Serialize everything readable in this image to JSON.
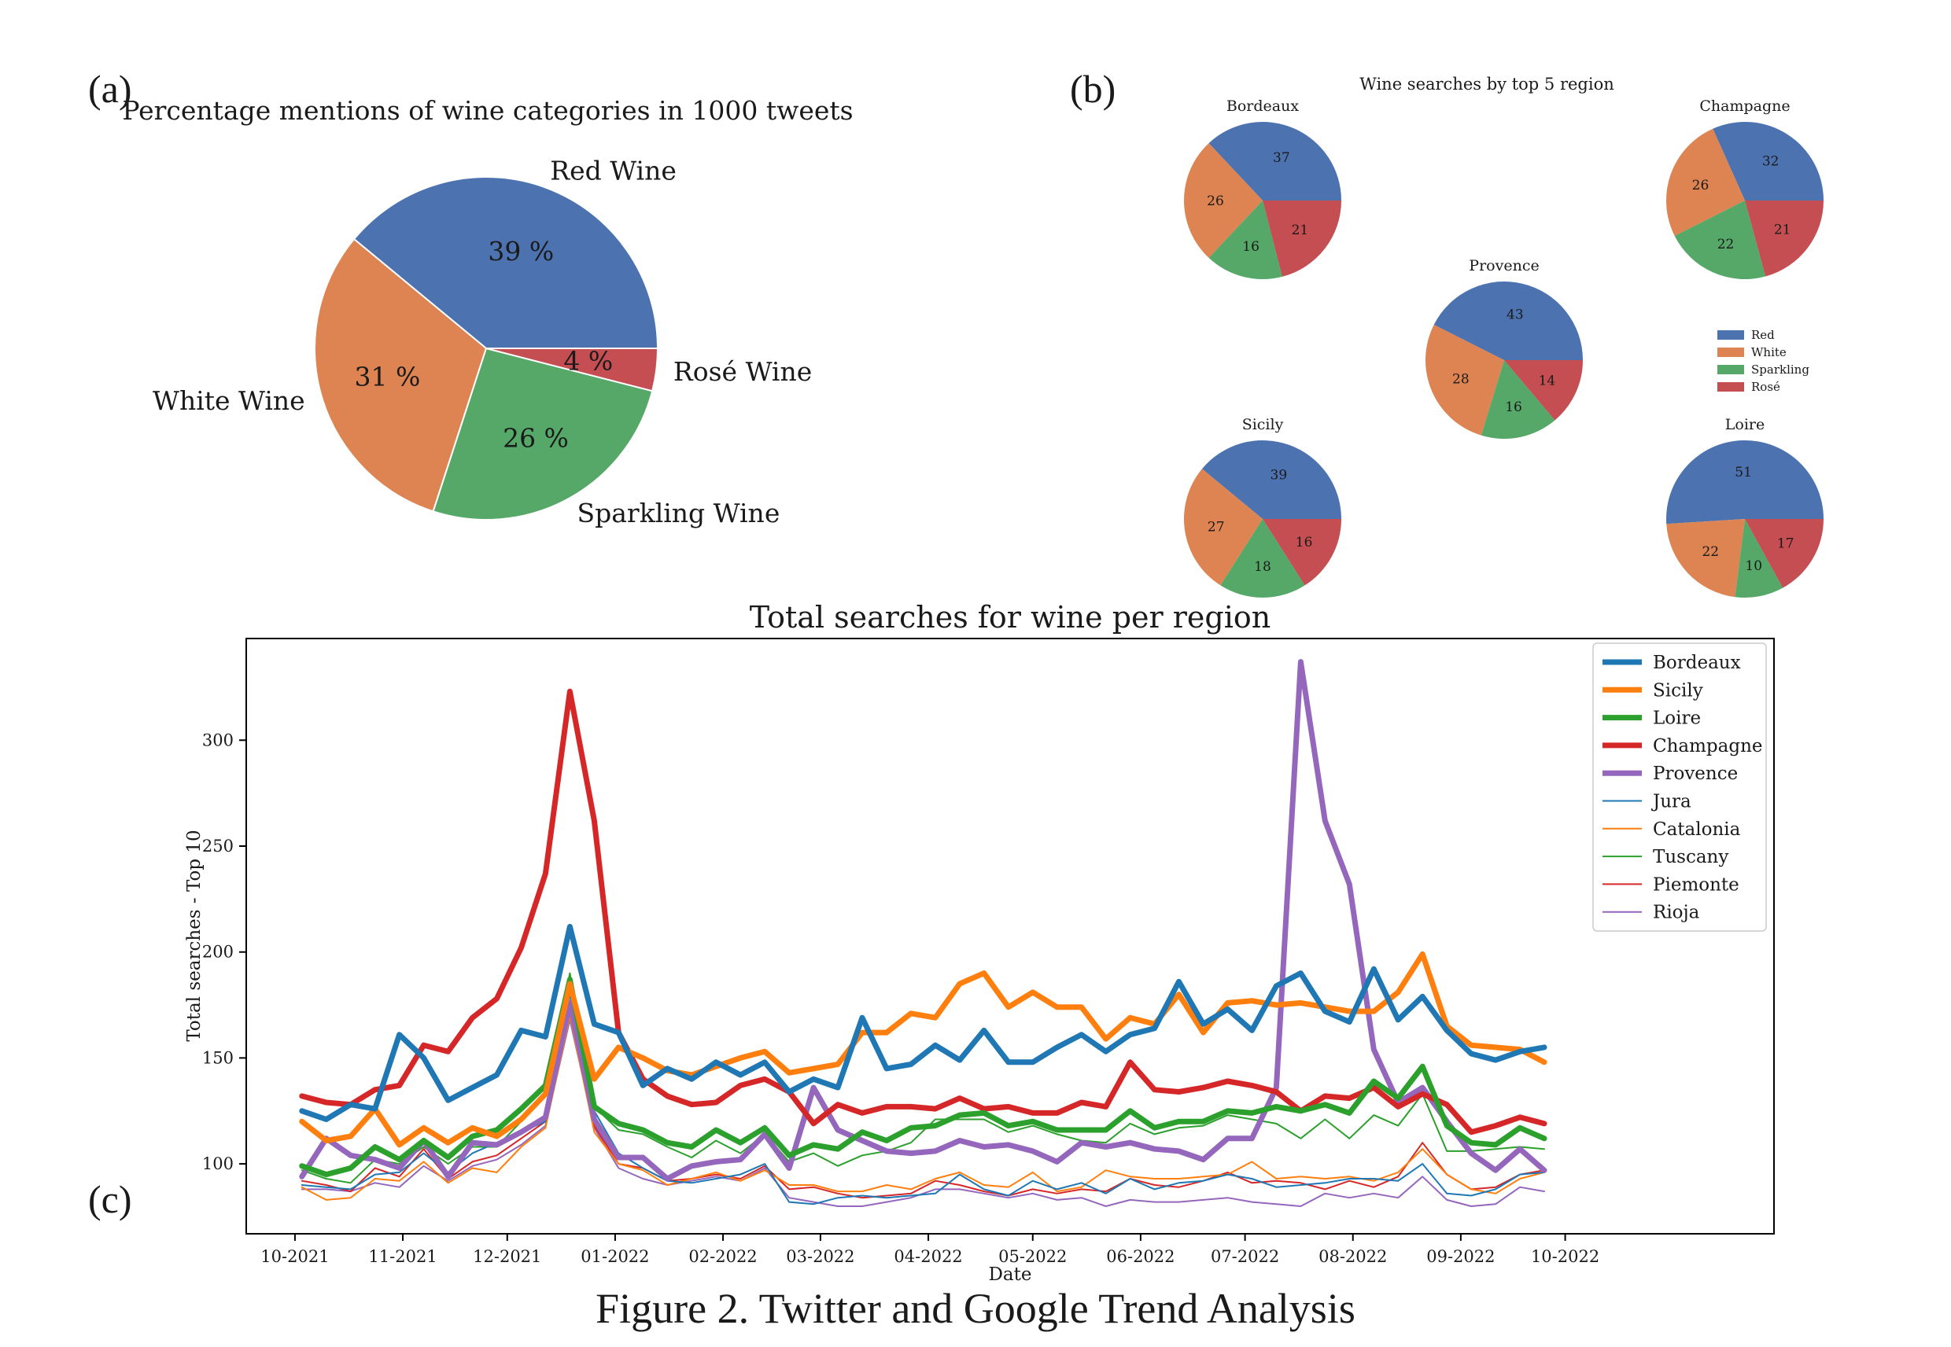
{
  "figure": {
    "caption": "Figure 2. Twitter and Google Trend Analysis",
    "panel_labels": {
      "a": "(a)",
      "b": "(b)",
      "c": "(c)"
    }
  },
  "chart_data": [
    {
      "id": "a",
      "type": "pie",
      "title": "Percentage mentions of wine categories in 1000 tweets",
      "slices": [
        {
          "label": "Red Wine",
          "value": 39,
          "pct_label": "39 %",
          "color": "#4c72b0"
        },
        {
          "label": "White Wine",
          "value": 31,
          "pct_label": "31 %",
          "color": "#dd8452"
        },
        {
          "label": "Sparkling Wine",
          "value": 26,
          "pct_label": "26 %",
          "color": "#55a868"
        },
        {
          "label": "Rosé Wine",
          "value": 4,
          "pct_label": "4 %",
          "color": "#c44e52"
        }
      ]
    },
    {
      "id": "b",
      "type": "pie",
      "title": "Wine searches by top 5 region",
      "legend": {
        "placement": "right",
        "entries": [
          {
            "label": "Red",
            "color": "#4c72b0"
          },
          {
            "label": "White",
            "color": "#dd8452"
          },
          {
            "label": "Sparkling",
            "color": "#55a868"
          },
          {
            "label": "Rosé",
            "color": "#c44e52"
          }
        ]
      },
      "pies": [
        {
          "title": "Bordeaux",
          "values": [
            37,
            26,
            16,
            21
          ]
        },
        {
          "title": "Champagne",
          "values": [
            32,
            26,
            22,
            21
          ]
        },
        {
          "title": "Provence",
          "values": [
            43,
            28,
            16,
            14
          ]
        },
        {
          "title": "Sicily",
          "values": [
            39,
            27,
            18,
            16
          ]
        },
        {
          "title": "Loire",
          "values": [
            51,
            22,
            10,
            17
          ]
        }
      ]
    },
    {
      "id": "c",
      "type": "line",
      "title": "Total searches for wine per region",
      "xlabel": "Date",
      "ylabel": "Total searches - Top 10",
      "x_start": "2021-10-03",
      "x_step_days": 7,
      "xlim": [
        "2021-09-17",
        "2022-11-30"
      ],
      "ylim": [
        67,
        348
      ],
      "xticks": [
        {
          "date": "2021-10-01",
          "label": "10-2021"
        },
        {
          "date": "2021-11-01",
          "label": "11-2021"
        },
        {
          "date": "2021-12-01",
          "label": "12-2021"
        },
        {
          "date": "2022-01-01",
          "label": "01-2022"
        },
        {
          "date": "2022-02-01",
          "label": "02-2022"
        },
        {
          "date": "2022-03-01",
          "label": "03-2022"
        },
        {
          "date": "2022-04-01",
          "label": "04-2022"
        },
        {
          "date": "2022-05-01",
          "label": "05-2022"
        },
        {
          "date": "2022-06-01",
          "label": "06-2022"
        },
        {
          "date": "2022-07-01",
          "label": "07-2022"
        },
        {
          "date": "2022-08-01",
          "label": "08-2022"
        },
        {
          "date": "2022-09-01",
          "label": "09-2022"
        },
        {
          "date": "2022-10-01",
          "label": "10-2022"
        }
      ],
      "yticks": [
        100,
        150,
        200,
        250,
        300
      ],
      "grid": false,
      "legend_placement": "top-right",
      "series": [
        {
          "name": "Bordeaux",
          "color": "#1f77b4",
          "width": 7,
          "values": [
            125,
            121,
            128,
            126,
            161,
            150,
            130,
            136,
            142,
            163,
            160,
            212,
            166,
            162,
            137,
            145,
            140,
            148,
            142,
            148,
            134,
            140,
            136,
            169,
            145,
            147,
            156,
            149,
            163,
            148,
            148,
            155,
            161,
            153,
            161,
            164,
            186,
            166,
            173,
            163,
            184,
            190,
            172,
            167,
            192,
            168,
            179,
            163,
            152,
            149,
            153,
            155
          ]
        },
        {
          "name": "Sicily",
          "color": "#ff7f0e",
          "width": 7,
          "values": [
            120,
            111,
            113,
            126,
            109,
            117,
            110,
            117,
            113,
            121,
            133,
            185,
            140,
            155,
            150,
            144,
            142,
            146,
            150,
            153,
            143,
            145,
            147,
            162,
            162,
            171,
            169,
            185,
            190,
            174,
            181,
            174,
            174,
            159,
            169,
            166,
            180,
            162,
            176,
            177,
            175,
            176,
            174,
            172,
            172,
            181,
            199,
            165,
            156,
            155,
            154,
            148
          ]
        },
        {
          "name": "Loire",
          "color": "#2ca02c",
          "width": 7,
          "values": [
            99,
            95,
            98,
            108,
            102,
            111,
            103,
            113,
            116,
            126,
            137,
            187,
            127,
            119,
            116,
            110,
            108,
            116,
            110,
            117,
            104,
            109,
            107,
            115,
            111,
            117,
            118,
            123,
            124,
            118,
            120,
            116,
            116,
            116,
            125,
            117,
            120,
            120,
            125,
            124,
            127,
            125,
            128,
            124,
            139,
            131,
            146,
            118,
            110,
            109,
            117,
            112
          ]
        },
        {
          "name": "Champagne",
          "color": "#d62728",
          "width": 7,
          "values": [
            132,
            129,
            128,
            135,
            137,
            156,
            153,
            169,
            178,
            202,
            237,
            323,
            262,
            162,
            140,
            132,
            128,
            129,
            137,
            140,
            134,
            119,
            128,
            124,
            127,
            127,
            126,
            131,
            126,
            127,
            124,
            124,
            129,
            127,
            148,
            135,
            134,
            136,
            139,
            137,
            134,
            125,
            132,
            131,
            136,
            127,
            133,
            128,
            115,
            118,
            122,
            119
          ]
        },
        {
          "name": "Provence",
          "color": "#9467bd",
          "width": 7,
          "values": [
            94,
            112,
            104,
            102,
            98,
            111,
            94,
            110,
            109,
            115,
            122,
            176,
            121,
            103,
            103,
            93,
            99,
            101,
            102,
            114,
            98,
            136,
            116,
            111,
            106,
            105,
            106,
            111,
            108,
            109,
            106,
            101,
            110,
            108,
            110,
            107,
            106,
            102,
            112,
            112,
            136,
            337,
            262,
            232,
            154,
            129,
            136,
            120,
            105,
            97,
            107,
            97
          ]
        },
        {
          "name": "Jura",
          "color": "#1f77b4",
          "width": 2,
          "values": [
            90,
            89,
            88,
            95,
            96,
            105,
            96,
            105,
            110,
            115,
            120,
            180,
            125,
            105,
            98,
            92,
            91,
            93,
            95,
            100,
            82,
            81,
            84,
            85,
            84,
            85,
            86,
            95,
            88,
            85,
            92,
            88,
            91,
            86,
            93,
            88,
            91,
            92,
            95,
            93,
            89,
            90,
            91,
            93,
            93,
            92,
            100,
            86,
            85,
            88,
            95,
            96
          ]
        },
        {
          "name": "Catalonia",
          "color": "#ff7f0e",
          "width": 2,
          "values": [
            89,
            83,
            84,
            93,
            92,
            101,
            91,
            98,
            96,
            108,
            117,
            170,
            115,
            100,
            97,
            90,
            93,
            96,
            92,
            97,
            90,
            90,
            87,
            87,
            90,
            88,
            93,
            96,
            90,
            89,
            96,
            87,
            89,
            97,
            94,
            93,
            93,
            94,
            95,
            101,
            93,
            94,
            93,
            94,
            92,
            96,
            107,
            95,
            88,
            86,
            93,
            96
          ]
        },
        {
          "name": "Tuscany",
          "color": "#2ca02c",
          "width": 2,
          "values": [
            97,
            93,
            91,
            102,
            100,
            108,
            100,
            108,
            108,
            120,
            133,
            190,
            127,
            116,
            114,
            108,
            103,
            111,
            105,
            114,
            101,
            105,
            99,
            104,
            106,
            110,
            121,
            121,
            121,
            115,
            118,
            114,
            111,
            110,
            119,
            114,
            117,
            118,
            123,
            121,
            119,
            112,
            121,
            112,
            123,
            118,
            133,
            106,
            106,
            107,
            108,
            107
          ]
        },
        {
          "name": "Piemonte",
          "color": "#d62728",
          "width": 2,
          "values": [
            92,
            90,
            87,
            98,
            94,
            107,
            93,
            101,
            104,
            112,
            120,
            172,
            118,
            100,
            98,
            92,
            93,
            95,
            93,
            99,
            88,
            89,
            86,
            84,
            85,
            86,
            92,
            90,
            87,
            85,
            88,
            86,
            88,
            87,
            93,
            90,
            89,
            92,
            96,
            91,
            92,
            91,
            88,
            92,
            89,
            94,
            110,
            95,
            88,
            89,
            95,
            97
          ]
        },
        {
          "name": "Rioja",
          "color": "#9467bd",
          "width": 2,
          "values": [
            88,
            88,
            87,
            91,
            89,
            99,
            92,
            99,
            102,
            109,
            118,
            168,
            117,
            98,
            93,
            90,
            92,
            94,
            92,
            98,
            84,
            82,
            80,
            80,
            82,
            84,
            88,
            88,
            86,
            84,
            86,
            83,
            84,
            80,
            83,
            82,
            82,
            83,
            84,
            82,
            81,
            80,
            86,
            84,
            86,
            84,
            94,
            83,
            80,
            81,
            89,
            87
          ]
        }
      ]
    }
  ]
}
